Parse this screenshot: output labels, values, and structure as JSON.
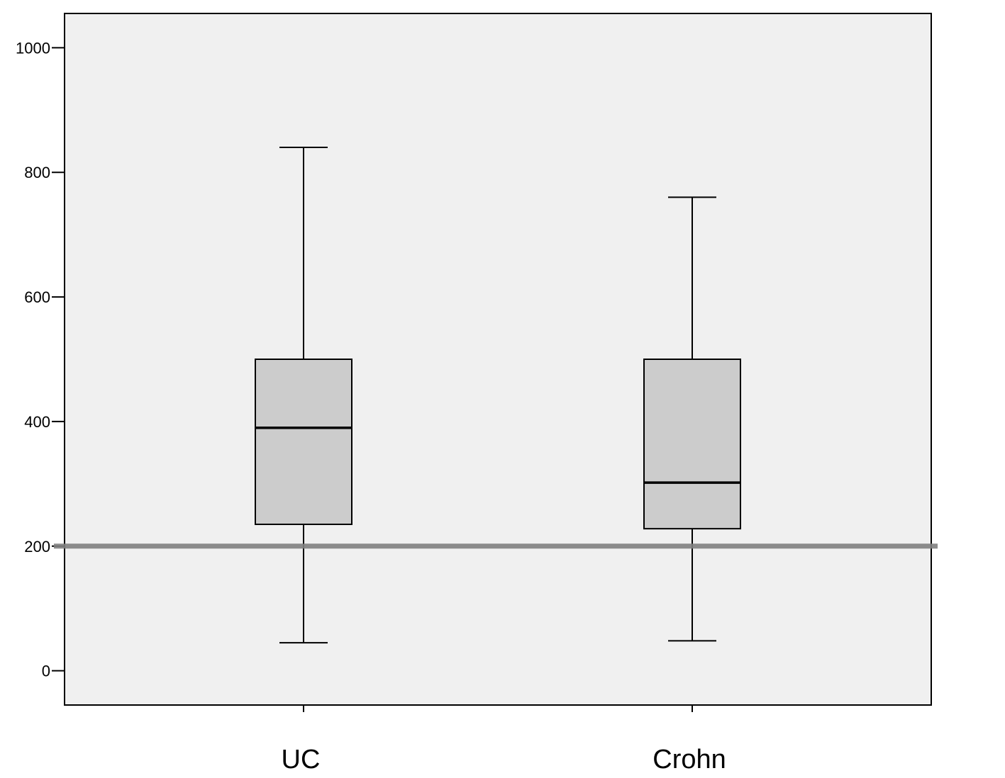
{
  "chart_data": {
    "type": "box",
    "title": "",
    "xlabel": "",
    "ylabel": "",
    "ylim": [
      -55,
      1055
    ],
    "yticks": [
      0,
      200,
      400,
      600,
      800,
      1000
    ],
    "grid": false,
    "categories": [
      "UC",
      "Crohn"
    ],
    "boxes": [
      {
        "category": "UC",
        "min": 45,
        "q1": 235,
        "median": 390,
        "q3": 500,
        "max": 840
      },
      {
        "category": "Crohn",
        "min": 48,
        "q1": 228,
        "median": 302,
        "q3": 500,
        "max": 760
      }
    ],
    "reference_line": {
      "y": 200
    },
    "colors": {
      "plot_background": "#f0f0f0",
      "box_fill": "#cccccc",
      "reference_line": "#7f7f7f",
      "axis": "#000000"
    }
  }
}
